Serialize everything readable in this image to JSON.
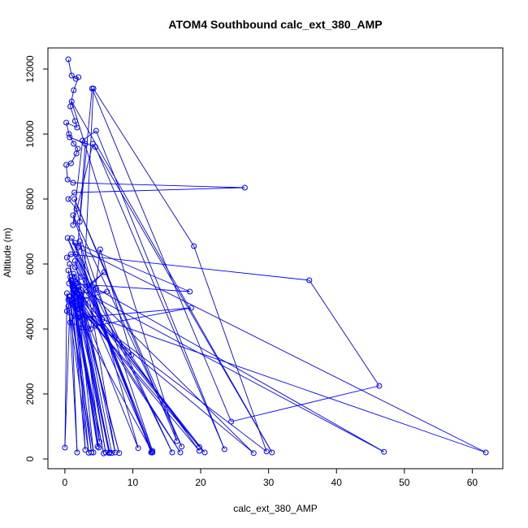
{
  "chart_data": {
    "type": "line",
    "title": "ATOM4 Southbound calc_ext_380_AMP",
    "xlabel": "calc_ext_380_AMP",
    "ylabel": "Altitude (m)",
    "xlim": [
      -2.5,
      64.5
    ],
    "ylim": [
      -300,
      12650
    ],
    "x_ticks": [
      0,
      10,
      20,
      30,
      40,
      50,
      60
    ],
    "y_ticks": [
      0,
      2000,
      4000,
      6000,
      8000,
      10000,
      12000
    ],
    "grid": false,
    "series_color": "#0000ff",
    "series": [
      {
        "marker": "open-circle",
        "line": true,
        "points": [
          [
            0.5,
            12300
          ],
          [
            1.0,
            11800
          ],
          [
            1.6,
            11700
          ],
          [
            2.0,
            11750
          ],
          [
            1.3,
            11350
          ],
          [
            0.8,
            10850
          ],
          [
            1.5,
            10400
          ],
          [
            1.8,
            10200
          ],
          [
            0.2,
            10350
          ],
          [
            0.6,
            10000
          ],
          [
            1.3,
            9700
          ],
          [
            1.9,
            9550
          ],
          [
            1.7,
            9400
          ],
          [
            0.9,
            9100
          ],
          [
            0.2,
            9050
          ],
          [
            0.4,
            8600
          ],
          [
            1.2,
            8500
          ],
          [
            26.5,
            8350
          ],
          [
            1.4,
            8200
          ],
          [
            0.5,
            8000
          ],
          [
            1.7,
            7700
          ],
          [
            2.2,
            7300
          ],
          [
            4.0,
            11400
          ],
          [
            24.5,
            1150
          ],
          [
            46.3,
            2250
          ],
          [
            36.0,
            5500
          ],
          [
            0.9,
            6300
          ],
          [
            0.3,
            6200
          ],
          [
            1.5,
            5900
          ],
          [
            2.3,
            5600
          ],
          [
            1.1,
            5300
          ],
          [
            2.0,
            5200
          ],
          [
            1.5,
            5000
          ],
          [
            3.1,
            4900
          ],
          [
            0.5,
            4700
          ],
          [
            0.3,
            4550
          ],
          [
            1.5,
            4400
          ],
          [
            0.8,
            4200
          ],
          [
            2.5,
            4050
          ],
          [
            4.2,
            11400
          ],
          [
            19.0,
            6550
          ],
          [
            29.7,
            230
          ],
          [
            1.0,
            4800
          ],
          [
            1.8,
            4600
          ],
          [
            4.5,
            4100
          ],
          [
            18.6,
            4650
          ],
          [
            2.2,
            4350
          ],
          [
            3.8,
            4000
          ],
          [
            5.2,
            6450
          ],
          [
            9.8,
            3200
          ],
          [
            2.0,
            4750
          ],
          [
            1.2,
            5100
          ],
          [
            6.2,
            5150
          ],
          [
            1.0,
            4800
          ],
          [
            5.8,
            5750
          ],
          [
            3.5,
            5350
          ],
          [
            4.6,
            5250
          ],
          [
            47.0,
            220
          ],
          [
            0.6,
            5400
          ],
          [
            18.4,
            5150
          ],
          [
            1.5,
            6650
          ],
          [
            5.5,
            4300
          ],
          [
            62.0,
            200
          ],
          [
            1.9,
            6500
          ],
          [
            3.0,
            9700
          ],
          [
            0.7,
            9900
          ],
          [
            4.5,
            9600
          ],
          [
            23.5,
            300
          ],
          [
            4.6,
            10100
          ],
          [
            2.6,
            9800
          ],
          [
            1.2,
            7200
          ],
          [
            4.1,
            9700
          ],
          [
            30.5,
            200
          ],
          [
            1.0,
            11000
          ],
          [
            16.5,
            550
          ],
          [
            1.4,
            8000
          ],
          [
            17.2,
            380
          ],
          [
            1.2,
            7500
          ],
          [
            12.9,
            250
          ],
          [
            1.6,
            6300
          ],
          [
            12.7,
            200
          ],
          [
            1.0,
            6800
          ],
          [
            15.8,
            200
          ],
          [
            0.4,
            6800
          ],
          [
            12.8,
            220
          ],
          [
            1.5,
            6100
          ],
          [
            7.4,
            200
          ],
          [
            2.2,
            6700
          ],
          [
            10.8,
            330
          ],
          [
            0.9,
            5500
          ],
          [
            17.0,
            200
          ],
          [
            1.3,
            5200
          ],
          [
            19.8,
            370
          ],
          [
            1.1,
            5400
          ],
          [
            20.6,
            200
          ],
          [
            0.8,
            5000
          ],
          [
            19.8,
            250
          ],
          [
            1.4,
            5600
          ],
          [
            27.8,
            180
          ],
          [
            0.5,
            4900
          ],
          [
            12.9,
            200
          ],
          [
            1.3,
            5700
          ],
          [
            8.0,
            180
          ],
          [
            0.7,
            6000
          ],
          [
            6.5,
            180
          ],
          [
            2.0,
            5300
          ],
          [
            6.0,
            200
          ],
          [
            1.8,
            5100
          ],
          [
            6.6,
            200
          ],
          [
            0.5,
            5800
          ],
          [
            5.7,
            170
          ],
          [
            1.2,
            4800
          ],
          [
            5.0,
            350
          ],
          [
            1.0,
            5500
          ],
          [
            4.8,
            380
          ],
          [
            1.2,
            5200
          ],
          [
            3.9,
            200
          ],
          [
            0.6,
            5000
          ],
          [
            4.2,
            200
          ],
          [
            1.7,
            5400
          ],
          [
            3.0,
            280
          ],
          [
            0.8,
            5600
          ],
          [
            1.8,
            200
          ],
          [
            0.7,
            4500
          ],
          [
            0.0,
            350
          ],
          [
            0.3,
            5100
          ],
          [
            3.5,
            190
          ],
          [
            1.3,
            4900
          ],
          [
            5.1,
            530
          ],
          [
            2.4,
            5050
          ],
          [
            6.9,
            180
          ]
        ]
      }
    ]
  }
}
